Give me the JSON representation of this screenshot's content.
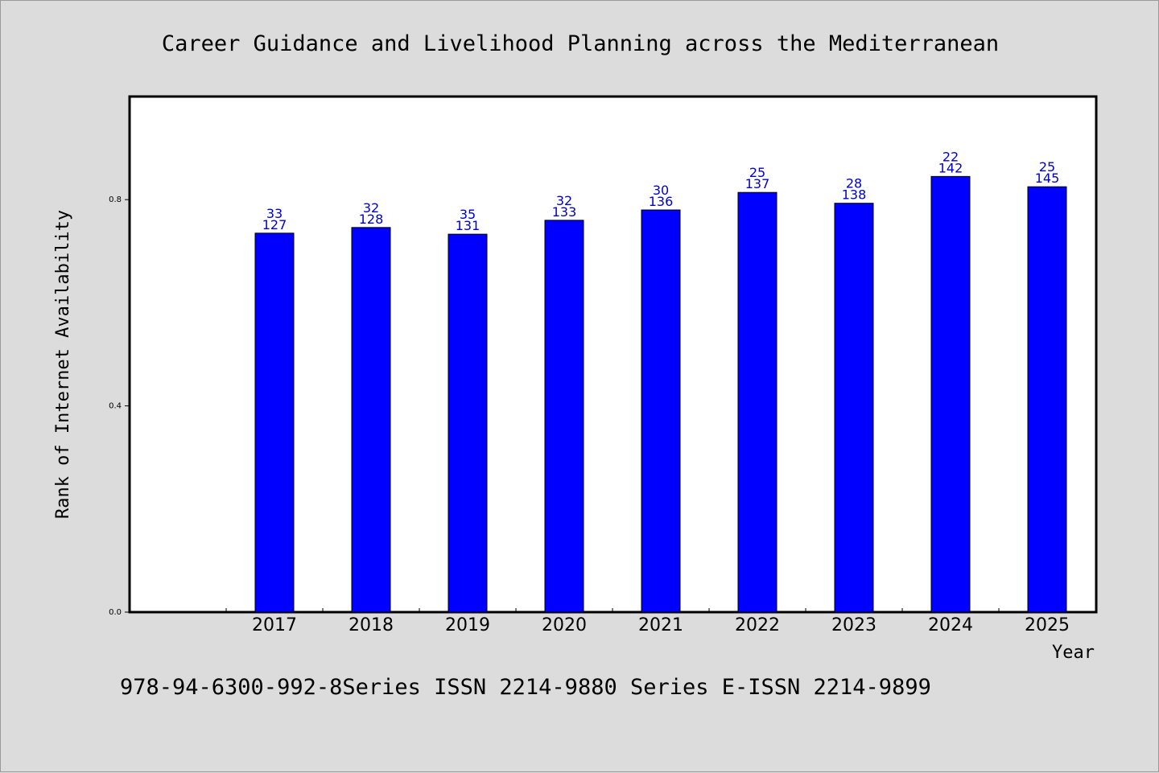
{
  "chart_data": {
    "type": "bar",
    "title": "Career Guidance and Livelihood Planning across the Mediterranean",
    "xlabel": "Year",
    "ylabel": "Rank of Internet Availability",
    "categories": [
      "2017",
      "2018",
      "2019",
      "2020",
      "2021",
      "2022",
      "2023",
      "2024",
      "2025"
    ],
    "series": [
      {
        "values": [
          0.735,
          0.746,
          0.733,
          0.76,
          0.78,
          0.814,
          0.793,
          0.845,
          0.825
        ],
        "color": "#0000ff"
      }
    ],
    "data_labels_top": [
      "33",
      "32",
      "35",
      "32",
      "30",
      "25",
      "28",
      "22",
      "25"
    ],
    "data_labels_bottom": [
      "127",
      "128",
      "131",
      "133",
      "136",
      "137",
      "138",
      "142",
      "145"
    ],
    "ylim": [
      0.0,
      1.0
    ],
    "yticks": [
      0.0,
      0.4,
      0.8
    ],
    "ytick_labels": [
      "0.0",
      "0.4",
      "0.8"
    ],
    "grid": false,
    "footer_text": "978-94-6300-992-8Series ISSN 2214-9880 Series E-ISSN 2214-9899"
  }
}
